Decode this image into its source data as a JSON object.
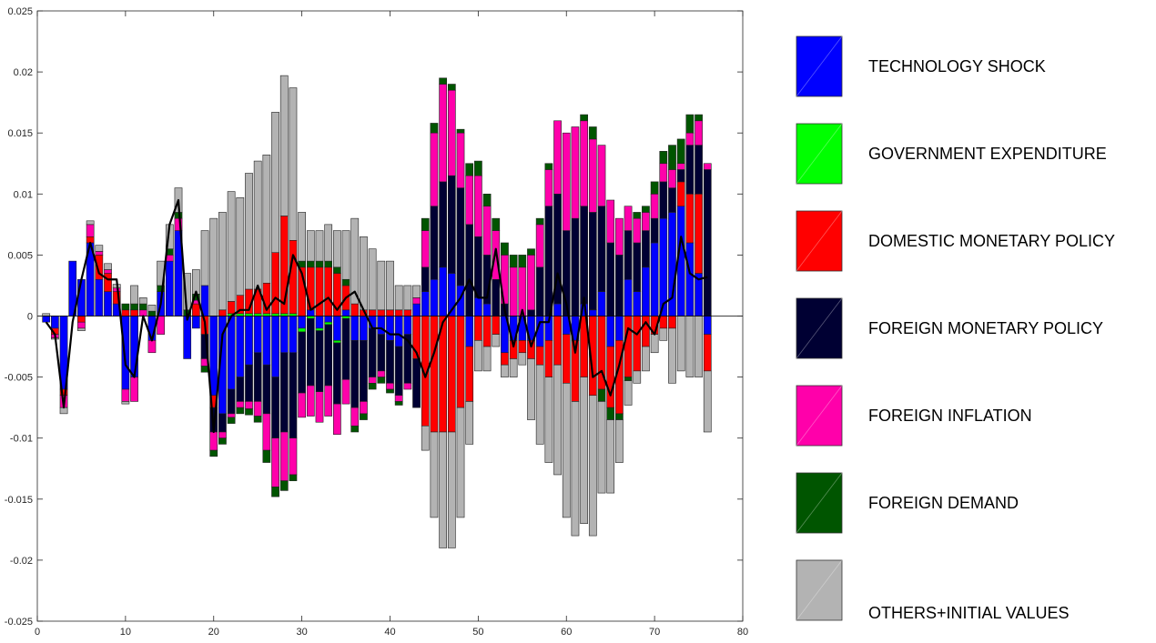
{
  "chart_data": {
    "type": "bar",
    "subtype": "stacked-bar-with-line",
    "title": "",
    "xlabel": "",
    "ylabel": "",
    "xlim": [
      0,
      80
    ],
    "ylim": [
      -0.025,
      0.025
    ],
    "x_ticks": [
      0,
      10,
      20,
      30,
      40,
      50,
      60,
      70,
      80
    ],
    "y_ticks": [
      -0.025,
      -0.02,
      -0.015,
      -0.01,
      -0.005,
      0,
      0.005,
      0.01,
      0.015,
      0.02,
      0.025
    ],
    "y_tick_labels": [
      "-0.025",
      "-0.02",
      "-0.015",
      "-0.01",
      "-0.005",
      "0",
      "0.005",
      "0.01",
      "0.015",
      "0.02",
      "0.025"
    ],
    "grid": false,
    "legend_position": "right",
    "x": [
      1,
      2,
      3,
      4,
      5,
      6,
      7,
      8,
      9,
      10,
      11,
      12,
      13,
      14,
      15,
      16,
      17,
      18,
      19,
      20,
      21,
      22,
      23,
      24,
      25,
      26,
      27,
      28,
      29,
      30,
      31,
      32,
      33,
      34,
      35,
      36,
      37,
      38,
      39,
      40,
      41,
      42,
      43,
      44,
      45,
      46,
      47,
      48,
      49,
      50,
      51,
      52,
      53,
      54,
      55,
      56,
      57,
      58,
      59,
      60,
      61,
      62,
      63,
      64,
      65,
      66,
      67,
      68,
      69,
      70,
      71,
      72,
      73,
      74,
      75,
      76
    ],
    "series": [
      {
        "name": "TECHNOLOGY SHOCK",
        "color": "#0000ff",
        "values": [
          -0.0005,
          -0.001,
          -0.006,
          0.0045,
          0.003,
          0.006,
          0.003,
          0.002,
          0.001,
          -0.006,
          -0.005,
          0,
          -0.002,
          0.002,
          0.0045,
          0.007,
          -0.0035,
          -0.001,
          0.0025,
          -0.0065,
          -0.008,
          -0.006,
          -0.005,
          -0.004,
          -0.003,
          -0.004,
          -0.005,
          -0.003,
          -0.003,
          -0.001,
          0.0005,
          -0.001,
          -0.0005,
          -0.002,
          0.0005,
          -0.002,
          -0.002,
          -0.001,
          -0.0015,
          -0.002,
          -0.0025,
          -0.0015,
          0.001,
          0.002,
          0.003,
          0.004,
          0.0035,
          0.0025,
          -0.0025,
          0.0015,
          0.001,
          0,
          -0.003,
          -0.002,
          -0.002,
          -0.002,
          -0.0025,
          -0.002,
          0.001,
          -0.0015,
          -0.002,
          0.001,
          0.0005,
          0.002,
          -0.0025,
          -0.002,
          0.003,
          0.002,
          0.004,
          0.006,
          0.008,
          0.0085,
          0.009,
          0.006,
          0.0035,
          -0.0015
        ]
      },
      {
        "name": "GOVERNMENT EXPENDITURE",
        "color": "#00ff00",
        "values": [
          0,
          0,
          0,
          0,
          0,
          0,
          0,
          0,
          0,
          0,
          0,
          0,
          0,
          0,
          0,
          0,
          0,
          0,
          0,
          0,
          0,
          0.0002,
          0.0002,
          0.0002,
          0.0002,
          0.0002,
          0.0002,
          0.0002,
          0.0002,
          -0.0003,
          -0.0002,
          -0.0002,
          -0.0002,
          -0.0002,
          -0.0002,
          0,
          0,
          0,
          0,
          0,
          0,
          0,
          0,
          0,
          0,
          0,
          0,
          0,
          0,
          0,
          0,
          0,
          0,
          0,
          0,
          0,
          0,
          0,
          0,
          0,
          0,
          0,
          0,
          0,
          0,
          0,
          0,
          0,
          0,
          0,
          0,
          0,
          0,
          0,
          0,
          0
        ]
      },
      {
        "name": "DOMESTIC MONETARY POLICY",
        "color": "#ff0000",
        "values": [
          0,
          -0.0005,
          -0.0005,
          0,
          -0.0005,
          0.0005,
          0.002,
          0.0015,
          0.001,
          0.0005,
          0.0005,
          0,
          0,
          0,
          0,
          0,
          0,
          0.001,
          -0.0015,
          -0.001,
          0.0005,
          0.001,
          0.0015,
          0.002,
          0.002,
          0.0025,
          0.005,
          0.008,
          0.006,
          0.004,
          0.0035,
          0.004,
          0.004,
          0.0035,
          0.002,
          0.001,
          0.0005,
          0.0005,
          0.0005,
          0.0005,
          0.0005,
          0.0005,
          -0.0035,
          -0.009,
          -0.0095,
          -0.0095,
          -0.0095,
          -0.0075,
          -0.0045,
          -0.002,
          -0.0025,
          -0.0015,
          -0.001,
          -0.0015,
          -0.001,
          -0.0015,
          -0.0015,
          -0.003,
          -0.004,
          -0.004,
          -0.005,
          -0.005,
          -0.0065,
          -0.006,
          -0.005,
          -0.006,
          -0.005,
          -0.0045,
          -0.0025,
          -0.0015,
          -0.001,
          -0.001,
          0.002,
          0.004,
          0.0065,
          -0.003
        ]
      },
      {
        "name": "FOREIGN MONETARY POLICY",
        "color": "#000033",
        "values": [
          0,
          0,
          0,
          0,
          0,
          0,
          0,
          0,
          0,
          0,
          0,
          0,
          0,
          0,
          0,
          0,
          0,
          0,
          -0.002,
          -0.002,
          -0.0015,
          -0.002,
          -0.002,
          -0.003,
          -0.004,
          -0.004,
          -0.005,
          -0.0065,
          -0.007,
          -0.005,
          -0.0055,
          -0.005,
          -0.005,
          -0.005,
          -0.005,
          -0.0055,
          -0.005,
          -0.004,
          -0.003,
          -0.0035,
          -0.004,
          -0.004,
          -0.004,
          0.002,
          0.006,
          0.007,
          0.008,
          0.008,
          0.0075,
          0.005,
          0.004,
          0.003,
          0.001,
          0,
          0,
          0.0005,
          0.004,
          0.009,
          0.009,
          0.007,
          0.008,
          0.008,
          0.008,
          0.007,
          0.006,
          0.005,
          0.004,
          0.004,
          0.003,
          0.002,
          0.003,
          0.002,
          0.001,
          0.004,
          0.004,
          0.012
        ]
      },
      {
        "name": "FOREIGN INFLATION",
        "color": "#ff00aa",
        "values": [
          0,
          -0.0003,
          -0.001,
          0,
          -0.0005,
          0.001,
          0.0003,
          0.0003,
          0.0003,
          -0.001,
          -0.002,
          0.0005,
          -0.001,
          -0.0015,
          0.0005,
          0.001,
          0,
          0.0003,
          -0.0006,
          -0.0015,
          -0.0005,
          -0.0003,
          -0.0005,
          -0.0006,
          -0.0012,
          -0.003,
          -0.004,
          -0.004,
          -0.003,
          -0.002,
          -0.0025,
          -0.0025,
          -0.0025,
          -0.0025,
          -0.002,
          -0.0015,
          -0.001,
          -0.0005,
          -0.0005,
          -0.0005,
          -0.0005,
          -0.0005,
          0.0005,
          0.003,
          0.006,
          0.008,
          0.007,
          0.0045,
          0.004,
          0.005,
          0.004,
          0.004,
          0.004,
          0.004,
          0.004,
          0.0045,
          0.0035,
          0.003,
          0.006,
          0.008,
          0.0075,
          0.007,
          0.006,
          0.005,
          0.0035,
          0.003,
          0.002,
          0.002,
          0.0015,
          0.002,
          0.0015,
          0.0015,
          0.0005,
          0.001,
          0.002,
          0.0005
        ]
      },
      {
        "name": "FOREIGN DEMAND",
        "color": "#005500",
        "values": [
          0,
          0,
          0,
          0,
          0,
          0,
          0,
          0,
          0,
          0.0005,
          0.0005,
          0.0005,
          0.0004,
          0.0005,
          0.0005,
          0.0005,
          0.0005,
          0.0005,
          -0.0005,
          -0.0005,
          -0.0005,
          -0.0005,
          -0.0005,
          -0.0005,
          -0.0005,
          -0.001,
          -0.0008,
          -0.0008,
          -0.0005,
          0.0005,
          0.0005,
          0.0005,
          0.0005,
          0.0005,
          0.0005,
          -0.0005,
          -0.0005,
          -0.0005,
          -0.0005,
          -0.0003,
          -0.0003,
          0,
          0,
          0.001,
          0.0008,
          0.0005,
          0.0005,
          0.0003,
          0.001,
          0.0012,
          0.001,
          0.001,
          0.001,
          0.001,
          0.001,
          0.0005,
          0.0005,
          0.0005,
          0,
          0,
          0,
          0.0005,
          0.001,
          -0.001,
          -0.001,
          -0.0005,
          -0.0003,
          0.0005,
          0.0005,
          0.001,
          0.001,
          0.002,
          0.002,
          0.0015,
          0.0005,
          0
        ]
      },
      {
        "name": "OTHERS+INITIAL VALUES",
        "color": "#b3b3b3",
        "values": [
          0.0002,
          -0.0001,
          -0.0005,
          0,
          -0.0002,
          0.0003,
          0.0005,
          0.0005,
          0.0003,
          -0.0002,
          0.0015,
          0.0005,
          0.0005,
          0.002,
          0.002,
          0.002,
          0.003,
          0.002,
          0.0045,
          0.008,
          0.008,
          0.009,
          0.008,
          0.0095,
          0.0105,
          0.0105,
          0.0115,
          0.0115,
          0.0125,
          0.004,
          0.0025,
          0.0025,
          0.003,
          0.003,
          0.004,
          0.007,
          0.006,
          0.005,
          0.004,
          0.004,
          0.002,
          0.002,
          0.001,
          -0.002,
          -0.007,
          -0.0095,
          -0.0095,
          -0.009,
          -0.0035,
          -0.0025,
          -0.002,
          -0.001,
          -0.001,
          -0.0015,
          -0.001,
          -0.005,
          -0.0065,
          -0.007,
          -0.009,
          -0.011,
          -0.011,
          -0.012,
          -0.0115,
          -0.0075,
          -0.006,
          -0.0035,
          -0.002,
          -0.001,
          -0.002,
          -0.0015,
          -0.001,
          -0.0045,
          -0.0045,
          -0.005,
          -0.005,
          -0.005
        ]
      }
    ],
    "line": {
      "name": "",
      "color": "#000000",
      "values": [
        -0.0005,
        -0.0015,
        -0.0075,
        -0.0005,
        0.003,
        0.006,
        0.0035,
        0.003,
        0.003,
        -0.004,
        -0.005,
        0,
        -0.002,
        0.001,
        0.0075,
        0.0095,
        -0.0003,
        0.002,
        -0.0005,
        -0.0095,
        -0.0015,
        0,
        0.0005,
        0.0005,
        0.0025,
        0.0005,
        0.0015,
        0.001,
        0.005,
        0.0035,
        0.0005,
        0.001,
        0.0015,
        0.0005,
        0.0015,
        0.002,
        0.0005,
        -0.001,
        -0.001,
        -0.0015,
        -0.0015,
        -0.002,
        -0.003,
        -0.005,
        -0.003,
        -0.0005,
        0.0005,
        0.0015,
        0.003,
        0.0015,
        0.0015,
        0.0055,
        0.0005,
        -0.0025,
        0.0005,
        -0.0025,
        -0.0005,
        -0.0005,
        0.0035,
        0.001,
        -0.003,
        0.0015,
        -0.005,
        -0.0045,
        -0.0065,
        -0.004,
        -0.001,
        -0.0015,
        -0.0005,
        -0.0015,
        0.001,
        0.0015,
        0.0065,
        0.0035,
        0.003,
        0.0032
      ]
    }
  }
}
